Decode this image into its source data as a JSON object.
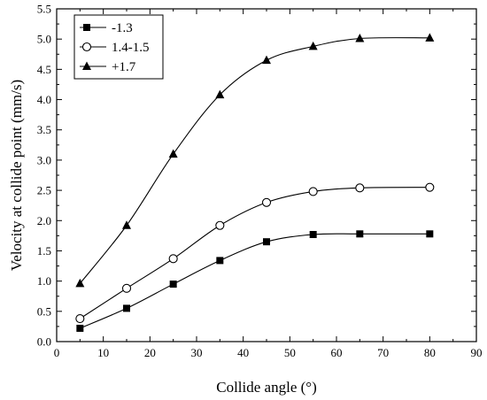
{
  "chart_data": {
    "type": "line",
    "title": "",
    "xlabel": "Collide angle (°)",
    "ylabel": "Velocity at collide point (mm/s)",
    "xlim": [
      0,
      90
    ],
    "ylim": [
      0,
      5.5
    ],
    "xticks": [
      0,
      10,
      20,
      30,
      40,
      50,
      60,
      70,
      80,
      90
    ],
    "yticks": [
      0.0,
      0.5,
      1.0,
      1.5,
      2.0,
      2.5,
      3.0,
      3.5,
      4.0,
      4.5,
      5.0,
      5.5
    ],
    "ytick_labels": [
      "0.0",
      "0.5",
      "1.0",
      "1.5",
      "2.0",
      "2.5",
      "3.0",
      "3.5",
      "4.0",
      "4.5",
      "5.0",
      "5.5"
    ],
    "grid": false,
    "legend_position": "top-left",
    "x": [
      5,
      15,
      25,
      35,
      45,
      55,
      65,
      80
    ],
    "series": [
      {
        "name": "-1.3",
        "marker": "filled-square",
        "values": [
          0.22,
          0.55,
          0.95,
          1.34,
          1.65,
          1.77,
          1.78,
          1.78
        ]
      },
      {
        "name": "1.4-1.5",
        "marker": "open-circle",
        "values": [
          0.38,
          0.88,
          1.37,
          1.92,
          2.3,
          2.48,
          2.54,
          2.55
        ]
      },
      {
        "name": "+1.7",
        "marker": "filled-triangle",
        "values": [
          0.96,
          1.92,
          3.1,
          4.08,
          4.65,
          4.88,
          5.01,
          5.02
        ]
      }
    ]
  }
}
